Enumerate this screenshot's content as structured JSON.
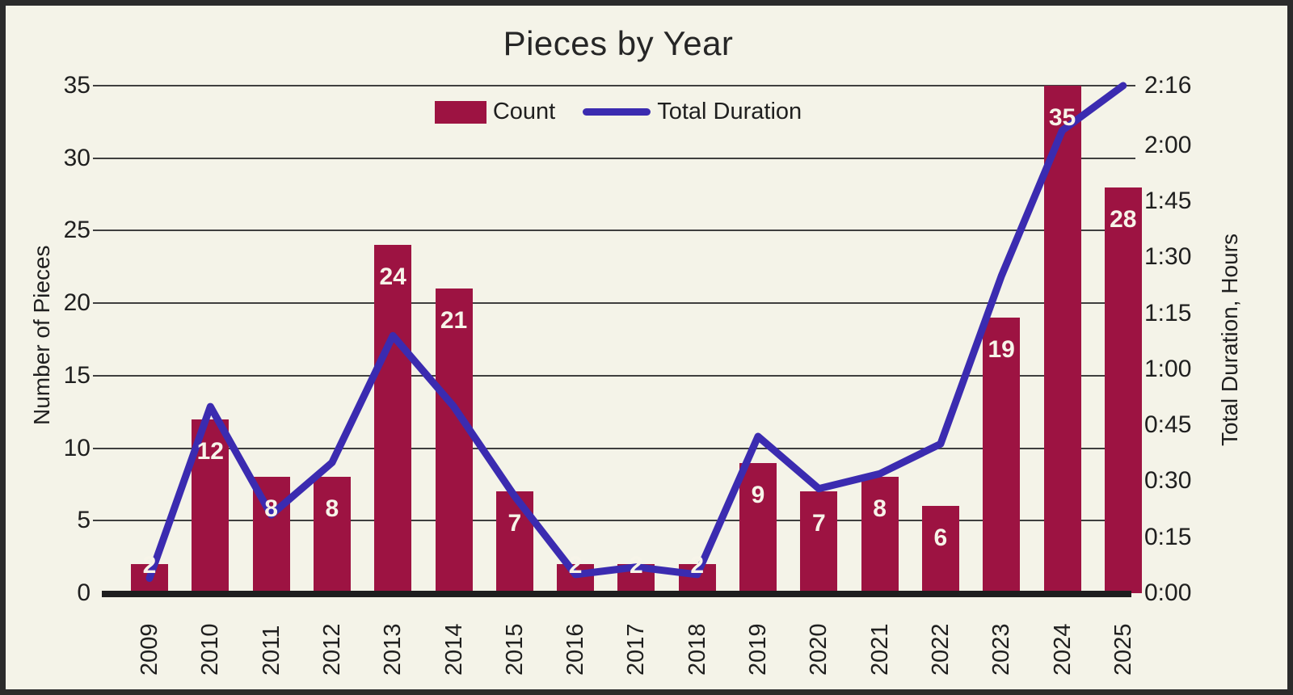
{
  "chart_data": {
    "type": "bar+line",
    "title": "Pieces by Year",
    "categories": [
      "2009",
      "2010",
      "2011",
      "2012",
      "2013",
      "2014",
      "2015",
      "2016",
      "2017",
      "2018",
      "2019",
      "2020",
      "2021",
      "2022",
      "2023",
      "2024",
      "2025"
    ],
    "series": [
      {
        "name": "Count",
        "type": "bar",
        "axis": "left",
        "values": [
          2,
          12,
          8,
          8,
          24,
          21,
          7,
          2,
          2,
          2,
          9,
          7,
          8,
          6,
          19,
          35,
          28
        ],
        "data_labels_visible": true
      },
      {
        "name": "Total Duration",
        "type": "line",
        "axis": "right",
        "values_minutes": [
          4,
          50,
          21,
          35,
          69,
          50,
          26,
          5,
          7,
          5,
          42,
          28,
          32,
          40,
          85,
          124,
          136
        ],
        "values_display": [
          "0:04",
          "0:50",
          "0:21",
          "0:35",
          "1:09",
          "0:50",
          "0:26",
          "0:05",
          "0:07",
          "0:05",
          "0:42",
          "0:28",
          "0:32",
          "0:40",
          "1:25",
          "2:04",
          "2:16"
        ],
        "data_labels_visible": false
      }
    ],
    "left_axis": {
      "label": "Number of Pieces",
      "ticks": [
        0,
        5,
        10,
        15,
        20,
        25,
        30,
        35
      ],
      "range": [
        0,
        35
      ]
    },
    "right_axis": {
      "label": "Total Duration, Hours",
      "ticks": [
        {
          "label": "0:00",
          "minutes": 0
        },
        {
          "label": "0:15",
          "minutes": 15
        },
        {
          "label": "0:30",
          "minutes": 30
        },
        {
          "label": "0:45",
          "minutes": 45
        },
        {
          "label": "1:00",
          "minutes": 60
        },
        {
          "label": "1:15",
          "minutes": 75
        },
        {
          "label": "1:30",
          "minutes": 90
        },
        {
          "label": "1:45",
          "minutes": 105
        },
        {
          "label": "2:00",
          "minutes": 120
        },
        {
          "label": "2:16",
          "minutes": 136
        }
      ],
      "range_minutes": [
        0,
        136
      ]
    },
    "legend": [
      {
        "label": "Count"
      },
      {
        "label": "Total Duration"
      }
    ],
    "legend_position": "top-center",
    "grid": "horizontal",
    "colors": {
      "background": "#f4f3e8",
      "frame": "#2b2b2b",
      "bar": "#9d1342",
      "line": "#3b2bb0",
      "grid": "#3f3f3f",
      "axis_line": "#1e1e1e",
      "text": "#1f1f1f",
      "bar_label": "#f7f4e9"
    }
  }
}
